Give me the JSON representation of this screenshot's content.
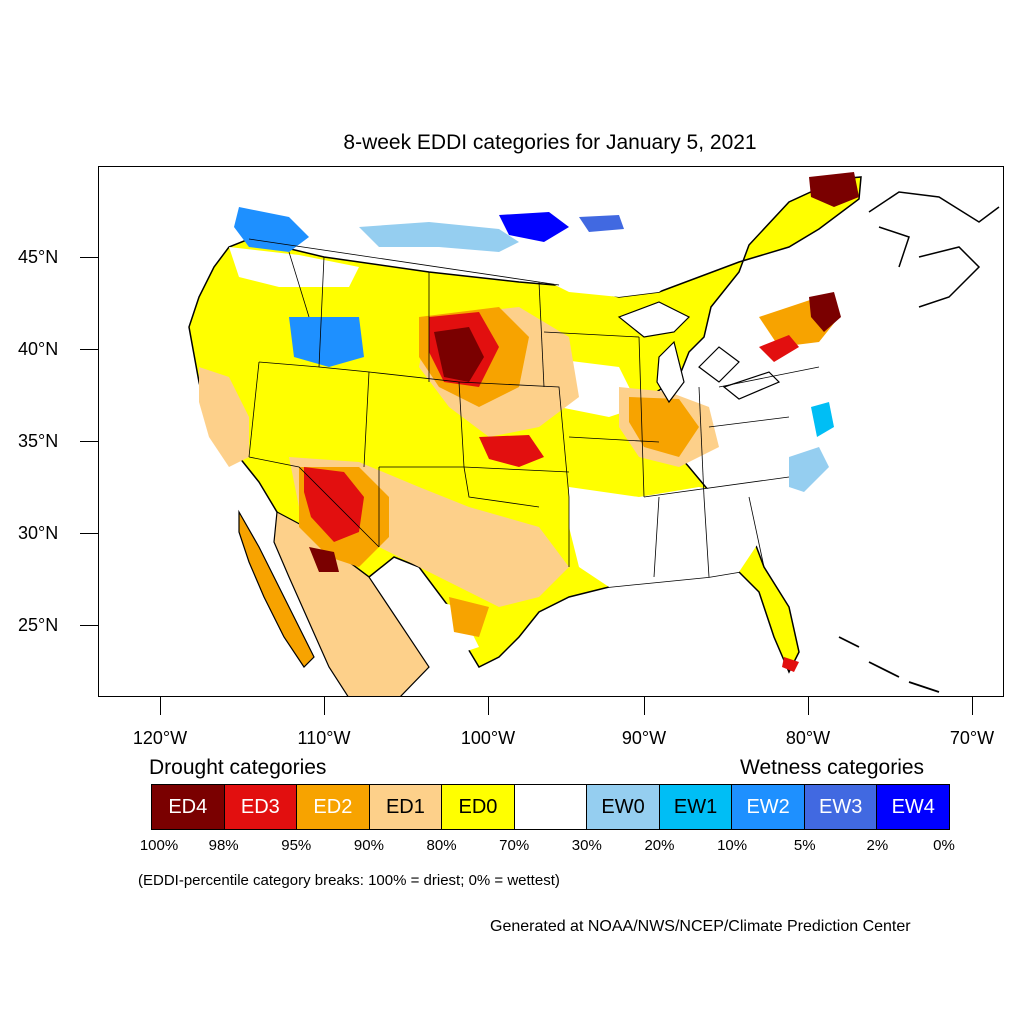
{
  "title": "8-week EDDI categories for January 5, 2021",
  "map": {
    "lat_labels": [
      "45°N",
      "40°N",
      "35°N",
      "30°N",
      "25°N"
    ],
    "lon_labels": [
      "120°W",
      "110°W",
      "100°W",
      "90°W",
      "80°W",
      "70°W"
    ]
  },
  "legend": {
    "drought_heading": "Drought categories",
    "wetness_heading": "Wetness categories",
    "categories": [
      {
        "label": "ED4",
        "color": "#7a0000",
        "text_color": "#ffffff"
      },
      {
        "label": "ED3",
        "color": "#e20f0f",
        "text_color": "#ffffff"
      },
      {
        "label": "ED2",
        "color": "#f7a300",
        "text_color": "#ffffff"
      },
      {
        "label": "ED1",
        "color": "#fdd08a",
        "text_color": "#000000"
      },
      {
        "label": "ED0",
        "color": "#ffff00",
        "text_color": "#000000"
      },
      {
        "label": "",
        "color": "#ffffff",
        "text_color": "#000000"
      },
      {
        "label": "EW0",
        "color": "#95cef0",
        "text_color": "#000000"
      },
      {
        "label": "EW1",
        "color": "#00bef5",
        "text_color": "#000000"
      },
      {
        "label": "EW2",
        "color": "#1e90ff",
        "text_color": "#ffffff"
      },
      {
        "label": "EW3",
        "color": "#4169e1",
        "text_color": "#ffffff"
      },
      {
        "label": "EW4",
        "color": "#0000ff",
        "text_color": "#ffffff"
      }
    ],
    "breaks": [
      "100%",
      "98%",
      "95%",
      "90%",
      "80%",
      "70%",
      "30%",
      "20%",
      "10%",
      "5%",
      "2%",
      "0%"
    ]
  },
  "note": "(EDDI-percentile category breaks: 100% = driest; 0% = wettest)",
  "credit": "Generated at NOAA/NWS/NCEP/Climate Prediction Center"
}
